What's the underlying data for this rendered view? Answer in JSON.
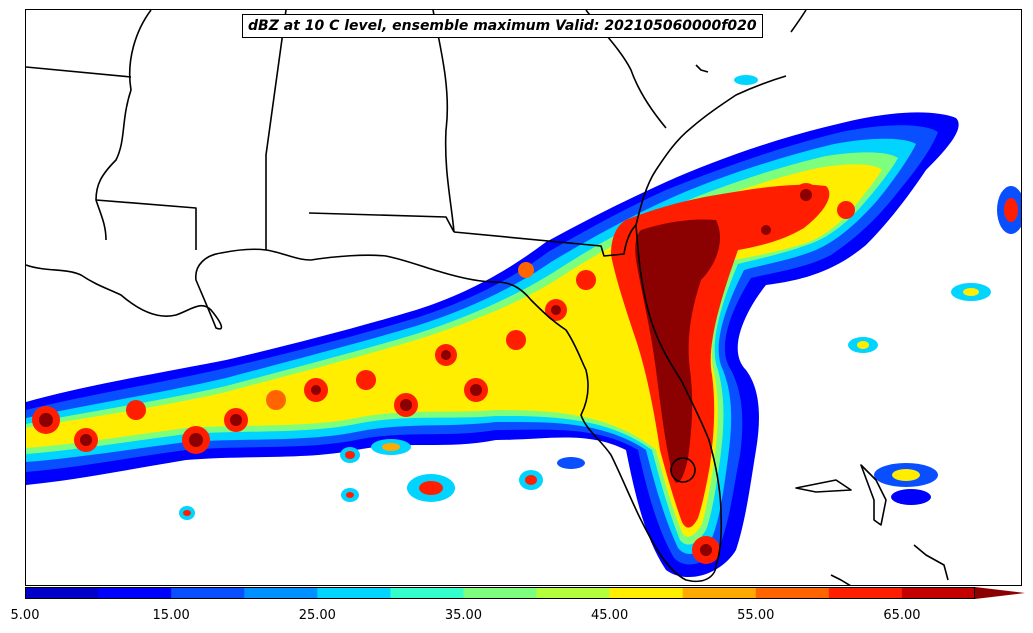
{
  "title": "dBZ at 10 C level, ensemble maximum Valid: 202105060000f020",
  "colorbar": {
    "min": 5.0,
    "max": 70.0,
    "step": 5.0,
    "extend": "max",
    "tick_labels": [
      "5.00",
      "15.00",
      "25.00",
      "35.00",
      "45.00",
      "55.00",
      "65.00"
    ],
    "colors": [
      "#0000c8",
      "#0000ff",
      "#0a4fff",
      "#0090ff",
      "#00d4ff",
      "#33ffcc",
      "#7dff7d",
      "#b4ff3c",
      "#ffee00",
      "#ffaa00",
      "#ff6400",
      "#ff1e00",
      "#c40000",
      "#8b0000"
    ]
  },
  "map": {
    "region": "Southeastern United States / Gulf of Mexico",
    "colors": {
      "land_line": "#000000",
      "ocean": "#ffffff"
    }
  }
}
